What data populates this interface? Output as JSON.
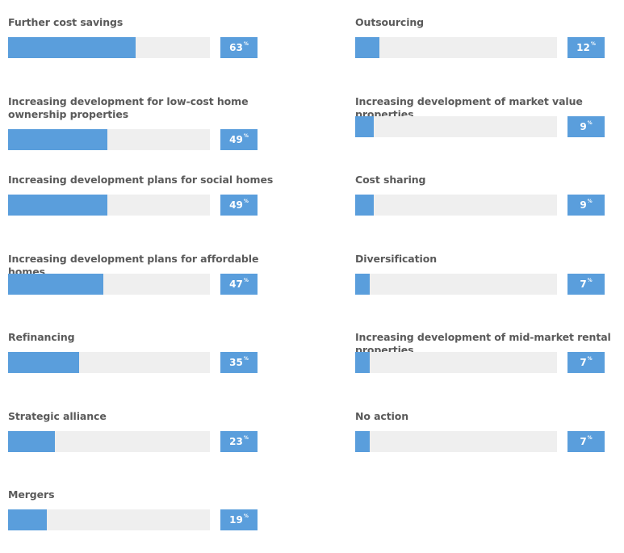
{
  "chart_data": {
    "type": "bar",
    "orientation": "horizontal",
    "value_suffix": "%",
    "ylim": [
      0,
      100
    ],
    "columns": [
      {
        "categories": [
          "Further cost savings",
          "Increasing development for low-cost home ownership properties",
          "Increasing development plans for social homes",
          "Increasing development plans for affordable homes",
          "Refinancing",
          "Strategic alliance",
          "Mergers"
        ],
        "values": [
          63,
          49,
          49,
          47,
          35,
          23,
          19
        ]
      },
      {
        "categories": [
          "Outsourcing",
          "Increasing development of market value properties",
          "Cost sharing",
          "Diversification",
          "Increasing development of mid-market rental properties",
          "No action"
        ],
        "values": [
          12,
          9,
          9,
          7,
          7,
          7
        ]
      }
    ],
    "colors": {
      "bar": "#5a9edc",
      "track": "#efefef",
      "label": "#5a5a5a",
      "badge_text": "#ffffff"
    }
  }
}
